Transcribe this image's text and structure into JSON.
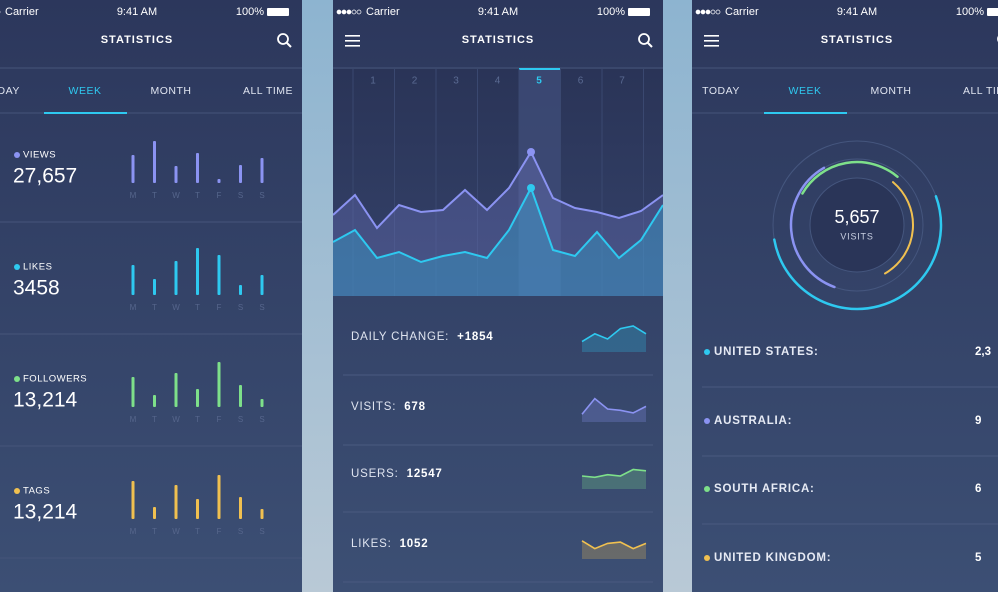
{
  "screens": [
    {
      "status": {
        "carrier": "Carrier",
        "time": "9:41 AM",
        "battery": "100%"
      },
      "title": "STATISTICS",
      "tabs": [
        "TODAY",
        "WEEK",
        "MONTH",
        "ALL TIME"
      ],
      "days": [
        "M",
        "T",
        "W",
        "T",
        "F",
        "S",
        "S"
      ],
      "metrics": [
        {
          "label": "VIEWS",
          "value": "27,657",
          "color": "#8b93f2",
          "bars": [
            28,
            42,
            17,
            30,
            4,
            18,
            25
          ]
        },
        {
          "label": "LIKES",
          "value": "3458",
          "color": "#2ec9f0",
          "bars": [
            30,
            16,
            34,
            47,
            40,
            10,
            20
          ]
        },
        {
          "label": "FOLLOWERS",
          "value": "13,214",
          "color": "#7ee08a",
          "bars": [
            30,
            12,
            34,
            18,
            45,
            22,
            8
          ]
        },
        {
          "label": "TAGS",
          "value": "13,214",
          "color": "#f0c050",
          "bars": [
            38,
            12,
            34,
            20,
            44,
            22,
            10
          ]
        }
      ]
    },
    {
      "status": {
        "carrier": "Carrier",
        "time": "9:41 AM",
        "battery": "100%"
      },
      "title": "STATISTICS",
      "days": [
        "1",
        "2",
        "3",
        "4",
        "5",
        "6",
        "7"
      ],
      "chart": {
        "series": [
          {
            "color": "#8b93f2",
            "values": [
              81,
              101,
              68,
              91,
              84,
              86,
              106,
              86,
              108,
              144,
              98,
              88,
              84,
              78,
              85,
              101
            ]
          },
          {
            "color": "#2ec9f0",
            "values": [
              54,
              66,
              38,
              44,
              34,
              40,
              44,
              38,
              66,
              108,
              46,
              40,
              64,
              38,
              56,
              91
            ]
          }
        ]
      },
      "rows": [
        {
          "label": "DAILY CHANGE:",
          "value": "+1854",
          "color": "#2ec9f0",
          "spark": [
            8,
            14,
            10,
            18,
            20,
            14
          ]
        },
        {
          "label": "VISITS:",
          "value": "678",
          "color": "#8b93f2",
          "spark": [
            6,
            18,
            10,
            9,
            7,
            12
          ]
        },
        {
          "label": "USERS:",
          "value": "12547",
          "color": "#7ee08a",
          "spark": [
            10,
            9,
            11,
            10,
            15,
            14
          ]
        },
        {
          "label": "LIKES:",
          "value": "1052",
          "color": "#f0c050",
          "spark": [
            14,
            8,
            12,
            13,
            8,
            12
          ]
        }
      ]
    },
    {
      "status": {
        "carrier": "Carrier",
        "time": "9:41 AM",
        "battery": "100%"
      },
      "title": "STATISTICS",
      "tabs": [
        "TODAY",
        "WEEK",
        "MONTH",
        "ALL TIME"
      ],
      "total": {
        "value": "5,657",
        "label": "VISITS"
      },
      "countries": [
        {
          "label": "UNITED STATES:",
          "value": "2,3",
          "color": "#2ec9f0"
        },
        {
          "label": "AUSTRALIA:",
          "value": "9",
          "color": "#8b93f2"
        },
        {
          "label": "SOUTH AFRICA:",
          "value": "6",
          "color": "#7ee08a"
        },
        {
          "label": "UNITED KINGDOM:",
          "value": "5",
          "color": "#f0c050"
        }
      ]
    }
  ]
}
